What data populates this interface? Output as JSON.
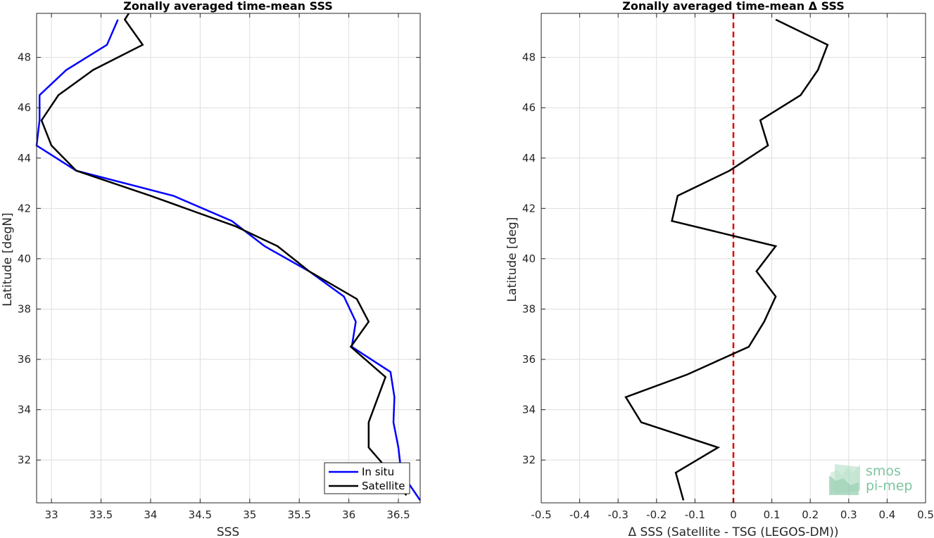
{
  "colors": {
    "insitu": "#0000ff",
    "satellite": "#000000",
    "zero_line": "#e00000",
    "grid": "#dedede",
    "logo": "#7fc4a0"
  },
  "logo": {
    "line1": "smos",
    "line2": "pi-mep"
  },
  "chart_data": [
    {
      "type": "line",
      "title": "Zonally averaged time-mean SSS",
      "xlabel": "SSS",
      "ylabel": "Latitude [degN]",
      "xlim": [
        32.85,
        36.72
      ],
      "ylim": [
        30.3,
        49.75
      ],
      "xticks": [
        33,
        33.5,
        34,
        34.5,
        35,
        35.5,
        36,
        36.5
      ],
      "xtick_labels": [
        "33",
        "33.5",
        "34",
        "34.5",
        "35",
        "35.5",
        "36",
        "36.5"
      ],
      "yticks": [
        32,
        34,
        36,
        38,
        40,
        42,
        44,
        46,
        48
      ],
      "ytick_labels": [
        "32",
        "34",
        "36",
        "38",
        "40",
        "42",
        "44",
        "46",
        "48"
      ],
      "grid": true,
      "legend": "bottom-right",
      "series": [
        {
          "name": "In situ",
          "color": "#0000ff",
          "points": [
            [
              36.72,
              30.4
            ],
            [
              36.53,
              31.5
            ],
            [
              36.5,
              32.5
            ],
            [
              36.45,
              33.5
            ],
            [
              36.46,
              34.5
            ],
            [
              36.42,
              35.5
            ],
            [
              36.03,
              36.5
            ],
            [
              36.07,
              37.5
            ],
            [
              35.95,
              38.5
            ],
            [
              35.6,
              39.5
            ],
            [
              35.15,
              40.5
            ],
            [
              34.82,
              41.5
            ],
            [
              34.23,
              42.5
            ],
            [
              33.25,
              43.5
            ],
            [
              32.85,
              44.5
            ],
            [
              32.88,
              45.5
            ],
            [
              32.88,
              46.5
            ],
            [
              33.15,
              47.5
            ],
            [
              33.56,
              48.5
            ],
            [
              33.67,
              49.5
            ]
          ]
        },
        {
          "name": "Satellite",
          "color": "#000000",
          "points": [
            [
              36.58,
              30.6
            ],
            [
              36.42,
              31.5
            ],
            [
              36.2,
              32.5
            ],
            [
              36.2,
              33.5
            ],
            [
              36.37,
              35.3
            ],
            [
              36.02,
              36.5
            ],
            [
              36.2,
              37.5
            ],
            [
              36.08,
              38.4
            ],
            [
              35.6,
              39.5
            ],
            [
              35.28,
              40.5
            ],
            [
              34.85,
              41.3
            ],
            [
              34.0,
              42.5
            ],
            [
              33.25,
              43.5
            ],
            [
              33.0,
              44.5
            ],
            [
              32.9,
              45.5
            ],
            [
              33.07,
              46.5
            ],
            [
              33.42,
              47.5
            ],
            [
              33.92,
              48.5
            ],
            [
              33.74,
              49.5
            ],
            [
              33.78,
              49.75
            ]
          ]
        }
      ]
    },
    {
      "type": "line",
      "title": "Zonally averaged time-mean Δ SSS",
      "xlabel": "Δ SSS (Satellite - TSG (LEGOS-DM))",
      "ylabel": "Latitude [deg]",
      "xlim": [
        -0.5,
        0.5
      ],
      "ylim": [
        30.3,
        49.75
      ],
      "xticks": [
        -0.5,
        -0.4,
        -0.3,
        -0.2,
        -0.1,
        0,
        0.1,
        0.2,
        0.3,
        0.4,
        0.5
      ],
      "xtick_labels": [
        "-0.5",
        "-0.4",
        "-0.3",
        "-0.2",
        "-0.1",
        "0",
        "0.1",
        "0.2",
        "0.3",
        "0.4",
        "0.5"
      ],
      "yticks": [
        32,
        34,
        36,
        38,
        40,
        42,
        44,
        46,
        48
      ],
      "ytick_labels": [
        "32",
        "34",
        "36",
        "38",
        "40",
        "42",
        "44",
        "46",
        "48"
      ],
      "grid": true,
      "reference_line": {
        "x": 0,
        "style": "dashed",
        "color": "#e00000"
      },
      "series": [
        {
          "color": "#000000",
          "points": [
            [
              -0.13,
              30.4
            ],
            [
              -0.15,
              31.5
            ],
            [
              -0.04,
              32.5
            ],
            [
              -0.24,
              33.5
            ],
            [
              -0.28,
              34.5
            ],
            [
              -0.12,
              35.4
            ],
            [
              0.04,
              36.5
            ],
            [
              0.08,
              37.5
            ],
            [
              0.11,
              38.5
            ],
            [
              0.06,
              39.5
            ],
            [
              0.11,
              40.5
            ],
            [
              -0.16,
              41.5
            ],
            [
              -0.145,
              42.5
            ],
            [
              -0.01,
              43.5
            ],
            [
              0.09,
              44.5
            ],
            [
              0.07,
              45.5
            ],
            [
              0.175,
              46.5
            ],
            [
              0.22,
              47.5
            ],
            [
              0.245,
              48.5
            ],
            [
              0.11,
              49.5
            ]
          ]
        }
      ]
    }
  ]
}
